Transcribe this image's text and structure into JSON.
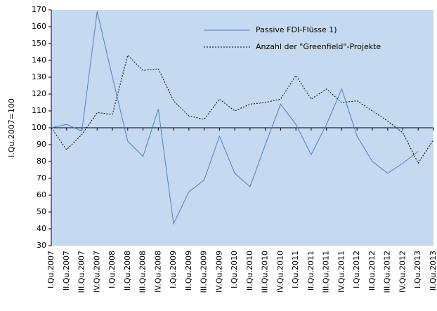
{
  "chart_data": {
    "type": "line",
    "y_label": "I.Qu.2007=100",
    "categories": [
      "I.Qu.2007",
      "II.Qu.2007",
      "III.Qu.2007",
      "IV.Qu.2007",
      "I.Qu.2008",
      "II.Qu.2008",
      "III.Qu.2008",
      "IV.Qu.2008",
      "I.Qu.2009",
      "II.Qu.2009",
      "III.Qu.2009",
      "IV.Qu.2009",
      "I.Qu.2010",
      "II.Qu.2010",
      "III.Qu.2010",
      "IV.Qu.2010",
      "I.Qu.2011",
      "II.Qu.2011",
      "III.Qu.2011",
      "IV.Qu.2011",
      "I.Qu.2012",
      "II.Qu.2012",
      "III.Qu.2012",
      "IV.Qu.2012",
      "I.Qu.2013",
      "II.Qu.2013"
    ],
    "series": [
      {
        "name": "Passive FDI-Flüsse 1)",
        "color": "#4f81bd",
        "dash": false,
        "values": [
          100,
          102,
          98,
          169,
          130,
          92,
          83,
          111,
          43,
          62,
          69,
          95,
          73,
          65,
          90,
          114,
          102,
          84,
          102,
          123,
          95,
          80,
          73,
          79,
          86,
          null
        ]
      },
      {
        "name": "Anzahl der \"Greenfield\"-Projekte",
        "color": "#000000",
        "dash": true,
        "values": [
          100,
          87,
          96,
          109,
          108,
          143,
          134,
          135,
          116,
          107,
          105,
          117,
          110,
          114,
          115,
          117,
          131,
          117,
          123,
          115,
          116,
          110,
          104,
          97,
          79,
          93
        ]
      }
    ],
    "ylim": [
      30,
      170
    ],
    "yticks": [
      30,
      40,
      50,
      60,
      70,
      80,
      90,
      100,
      110,
      120,
      130,
      140,
      150,
      160,
      170
    ],
    "baseline": 100,
    "plot_color": "#c5d9f1"
  }
}
